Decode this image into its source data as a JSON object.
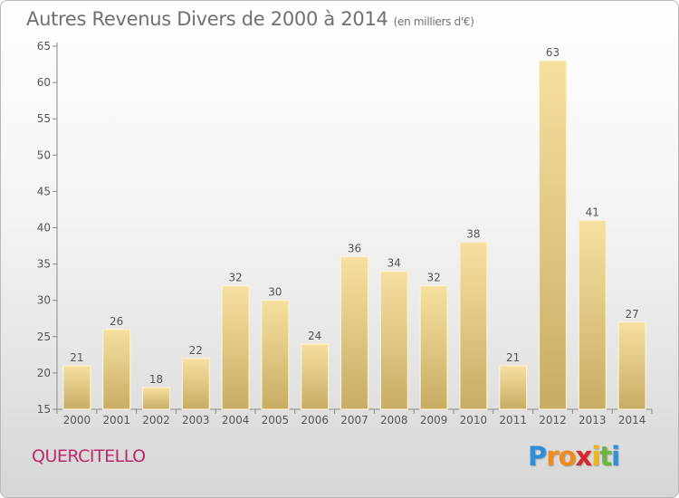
{
  "title": "Autres Revenus Divers de 2000 à 2014",
  "subtitle": "(en milliers d'€)",
  "commune": "QUERCITELLO",
  "logo": {
    "letters": [
      "P",
      "r",
      "o",
      "x",
      "i",
      "t",
      "i"
    ],
    "colors": [
      "#2f8fd8",
      "#f08a1c",
      "#f08a1c",
      "#d8262a",
      "#f0b41c",
      "#6cb43c",
      "#2f8fd8"
    ]
  },
  "colors": {
    "bar_light": "#f6e0a0",
    "bar_dark": "#c8ac64",
    "axis": "#8a8a8a",
    "label": "#555555"
  },
  "chart_data": {
    "type": "bar",
    "categories": [
      "2000",
      "2001",
      "2002",
      "2003",
      "2004",
      "2005",
      "2006",
      "2007",
      "2008",
      "2009",
      "2010",
      "2011",
      "2012",
      "2013",
      "2014"
    ],
    "values": [
      21,
      26,
      18,
      22,
      32,
      30,
      24,
      36,
      34,
      32,
      38,
      21,
      63,
      41,
      27
    ],
    "ylim": [
      15,
      65
    ],
    "yticks": [
      15,
      20,
      25,
      30,
      35,
      40,
      45,
      50,
      55,
      60,
      65
    ],
    "grid": false,
    "data_labels": true
  }
}
